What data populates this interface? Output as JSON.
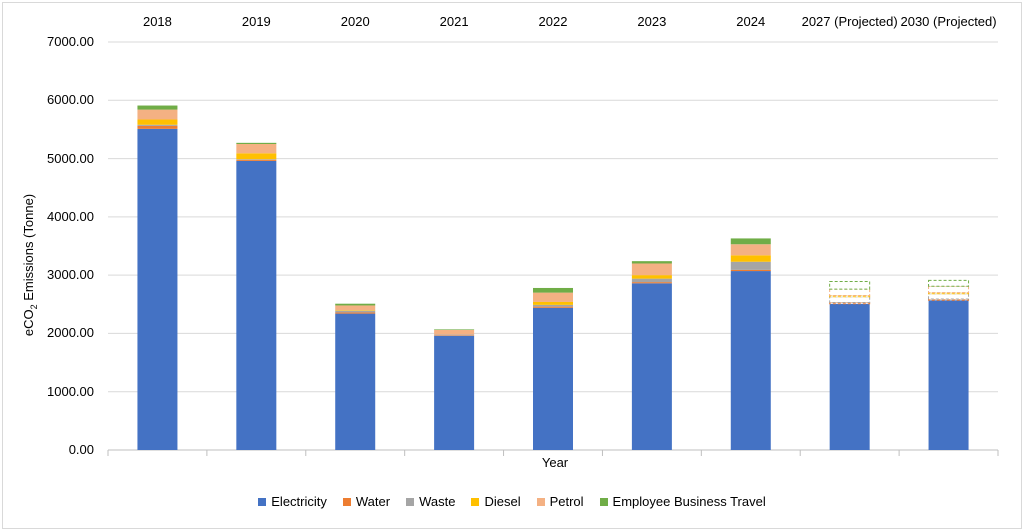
{
  "chart_data": {
    "type": "bar",
    "stacked": true,
    "title": "",
    "xlabel": "Year",
    "ylabel_main": "eCO",
    "ylabel_sub": "2",
    "ylabel_rest": " Emissions (Tonne)",
    "ylim": [
      0,
      7000
    ],
    "yticks": [
      "0.00",
      "1000.00",
      "2000.00",
      "3000.00",
      "4000.00",
      "5000.00",
      "6000.00",
      "7000.00"
    ],
    "grid": true,
    "legend_position": "bottom",
    "categories": [
      "2018",
      "2019",
      "2020",
      "2021",
      "2022",
      "2023",
      "2024",
      "2027 (Projected)",
      "2030 (Projected)"
    ],
    "projected_categories": [
      "2027 (Projected)",
      "2030 (Projected)"
    ],
    "series": [
      {
        "name": "Electricity",
        "color": "#4472c4",
        "values": [
          5510,
          4960,
          2340,
          1960,
          2440,
          2860,
          3070,
          2510,
          2570
        ]
      },
      {
        "name": "Water",
        "color": "#ed7d31",
        "values": [
          50,
          20,
          20,
          10,
          20,
          20,
          20,
          20,
          20
        ]
      },
      {
        "name": "Waste",
        "color": "#a5a5a5",
        "values": [
          20,
          10,
          30,
          10,
          30,
          60,
          140,
          100,
          90
        ]
      },
      {
        "name": "Diesel",
        "color": "#ffc000",
        "values": [
          90,
          100,
          10,
          0,
          50,
          60,
          110,
          20,
          20
        ]
      },
      {
        "name": "Petrol",
        "color": "#f4b183",
        "values": [
          170,
          160,
          80,
          80,
          160,
          200,
          190,
          110,
          110
        ]
      },
      {
        "name": "Employee Business Travel",
        "color": "#70ad47",
        "values": [
          70,
          20,
          30,
          10,
          80,
          40,
          100,
          130,
          100
        ]
      }
    ]
  }
}
